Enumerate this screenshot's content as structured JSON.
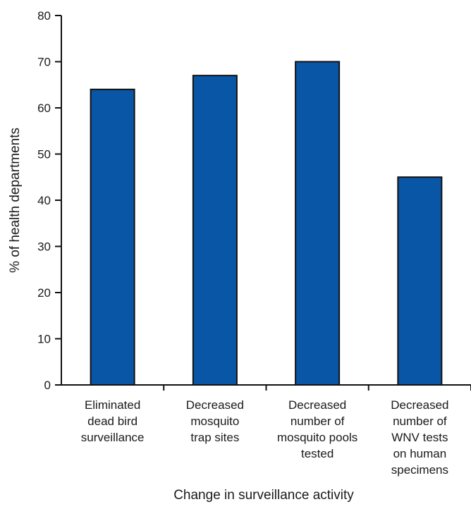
{
  "chart_data": {
    "type": "bar",
    "categories": [
      [
        "Eliminated",
        "dead bird",
        "surveillance"
      ],
      [
        "Decreased",
        "mosquito",
        "trap sites"
      ],
      [
        "Decreased",
        "number of",
        "mosquito pools",
        "tested"
      ],
      [
        "Decreased",
        "number of",
        "WNV tests",
        "on human",
        "specimens"
      ]
    ],
    "values": [
      64,
      67,
      70,
      45
    ],
    "xlabel": "Change in surveillance activity",
    "ylabel": "% of health departments",
    "ylim": [
      0,
      80
    ],
    "yticks": [
      0,
      10,
      20,
      30,
      40,
      50,
      60,
      70,
      80
    ],
    "grid": false,
    "colors": {
      "bar_fill": "#0a56a6",
      "bar_stroke": "#111111",
      "axis": "#111111"
    }
  }
}
